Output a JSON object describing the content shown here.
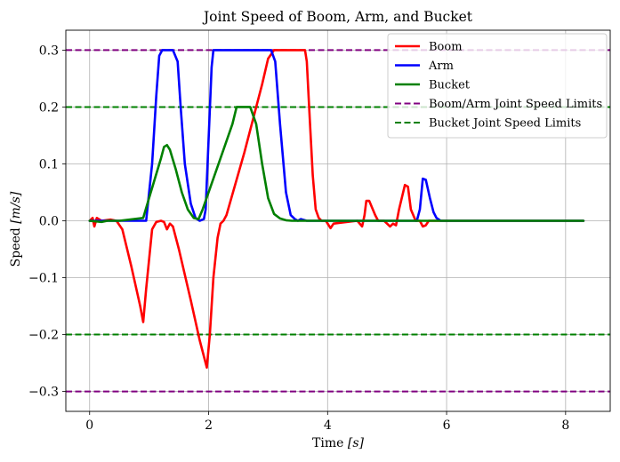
{
  "chart_data": {
    "type": "line",
    "title": "Joint Speed of Boom, Arm, and Bucket",
    "xlabel_text": "Time ",
    "xlabel_unit": "[s]",
    "ylabel_text": "Speed ",
    "ylabel_unit": "[m/s]",
    "xlim": [
      -0.4,
      8.75
    ],
    "ylim": [
      -0.335,
      0.335
    ],
    "xticks": [
      0,
      2,
      4,
      6,
      8
    ],
    "xtick_labels": [
      "0",
      "2",
      "4",
      "6",
      "8"
    ],
    "yticks": [
      -0.3,
      -0.2,
      -0.1,
      0.0,
      0.1,
      0.2,
      0.3
    ],
    "ytick_labels": [
      "−0.3",
      "−0.2",
      "−0.1",
      "0.0",
      "0.1",
      "0.2",
      "0.3"
    ],
    "grid": true,
    "legend_position": "top-right",
    "series": [
      {
        "name": "Boom",
        "color": "#ff0000",
        "style": "solid",
        "x": [
          0,
          0.05,
          0.08,
          0.12,
          0.2,
          0.35,
          0.45,
          0.55,
          0.7,
          0.85,
          0.9,
          0.95,
          1.05,
          1.12,
          1.2,
          1.25,
          1.3,
          1.35,
          1.4,
          1.5,
          1.7,
          1.85,
          1.97,
          2.02,
          2.08,
          2.15,
          2.2,
          2.25,
          2.3,
          2.6,
          2.9,
          3.0,
          3.1,
          3.5,
          3.62,
          3.65,
          3.7,
          3.75,
          3.8,
          3.85,
          3.9,
          3.97,
          4.05,
          4.1,
          4.5,
          4.58,
          4.62,
          4.65,
          4.7,
          4.8,
          4.85,
          4.95,
          5.05,
          5.1,
          5.15,
          5.2,
          5.3,
          5.35,
          5.4,
          5.48,
          5.55,
          5.6,
          5.65,
          5.7,
          5.8,
          6.0,
          8.3
        ],
        "y": [
          0.0,
          0.005,
          -0.01,
          0.005,
          0.0,
          0.002,
          0.0,
          -0.015,
          -0.08,
          -0.15,
          -0.178,
          -0.12,
          -0.015,
          -0.002,
          0.0,
          -0.002,
          -0.015,
          -0.005,
          -0.01,
          -0.05,
          -0.14,
          -0.21,
          -0.258,
          -0.2,
          -0.1,
          -0.03,
          -0.005,
          0.0,
          0.01,
          0.12,
          0.24,
          0.285,
          0.3,
          0.3,
          0.3,
          0.28,
          0.18,
          0.08,
          0.02,
          0.005,
          0.0,
          0.0,
          -0.013,
          -0.005,
          0.0,
          -0.01,
          0.01,
          0.035,
          0.035,
          0.01,
          0.0,
          0.0,
          -0.01,
          -0.005,
          -0.008,
          0.02,
          0.063,
          0.06,
          0.02,
          0.0,
          0.0,
          -0.01,
          -0.008,
          0.0,
          0.0,
          0.0,
          0.0
        ]
      },
      {
        "name": "Arm",
        "color": "#0000ff",
        "style": "solid",
        "x": [
          0,
          0.95,
          1.05,
          1.12,
          1.17,
          1.22,
          1.4,
          1.48,
          1.53,
          1.6,
          1.7,
          1.78,
          1.85,
          1.92,
          1.95,
          2.05,
          2.08,
          2.12,
          2.3,
          2.9,
          3.05,
          3.12,
          3.2,
          3.3,
          3.38,
          3.45,
          3.5,
          3.55,
          3.65,
          5.5,
          5.55,
          5.6,
          5.65,
          5.72,
          5.78,
          5.83,
          5.9,
          6.0,
          8.3
        ],
        "y": [
          0.0,
          0.0,
          0.1,
          0.22,
          0.29,
          0.3,
          0.3,
          0.28,
          0.2,
          0.1,
          0.03,
          0.005,
          0.0,
          0.003,
          0.02,
          0.27,
          0.3,
          0.3,
          0.3,
          0.3,
          0.3,
          0.28,
          0.17,
          0.05,
          0.01,
          0.003,
          0.0,
          0.003,
          0.0,
          0.0,
          0.02,
          0.074,
          0.072,
          0.04,
          0.015,
          0.005,
          0.0,
          0.0,
          0.0
        ]
      },
      {
        "name": "Bucket",
        "color": "#008000",
        "style": "solid",
        "x": [
          0,
          0.2,
          0.3,
          0.5,
          0.9,
          1.0,
          1.1,
          1.2,
          1.25,
          1.3,
          1.35,
          1.45,
          1.55,
          1.65,
          1.75,
          1.83,
          1.9,
          2.0,
          2.2,
          2.4,
          2.47,
          2.6,
          2.7,
          2.8,
          2.9,
          3.0,
          3.1,
          3.2,
          3.3,
          3.4,
          3.5,
          3.6,
          3.7,
          5.0,
          6.0,
          8.3
        ],
        "y": [
          0.0,
          -0.002,
          0.0,
          0.0,
          0.005,
          0.04,
          0.075,
          0.11,
          0.13,
          0.133,
          0.125,
          0.09,
          0.05,
          0.02,
          0.005,
          0.003,
          0.02,
          0.05,
          0.11,
          0.17,
          0.2,
          0.2,
          0.2,
          0.17,
          0.1,
          0.04,
          0.012,
          0.004,
          0.001,
          0.0,
          0.0,
          0.0,
          0.0,
          0.0,
          0.0,
          0.0
        ]
      },
      {
        "name": "Boom/Arm Joint Speed Limits",
        "color": "#800080",
        "style": "dashed",
        "hlines": [
          0.3,
          -0.3
        ]
      },
      {
        "name": "Bucket Joint Speed Limits",
        "color": "#008000",
        "style": "dashed",
        "hlines": [
          0.2,
          -0.2
        ]
      }
    ]
  }
}
